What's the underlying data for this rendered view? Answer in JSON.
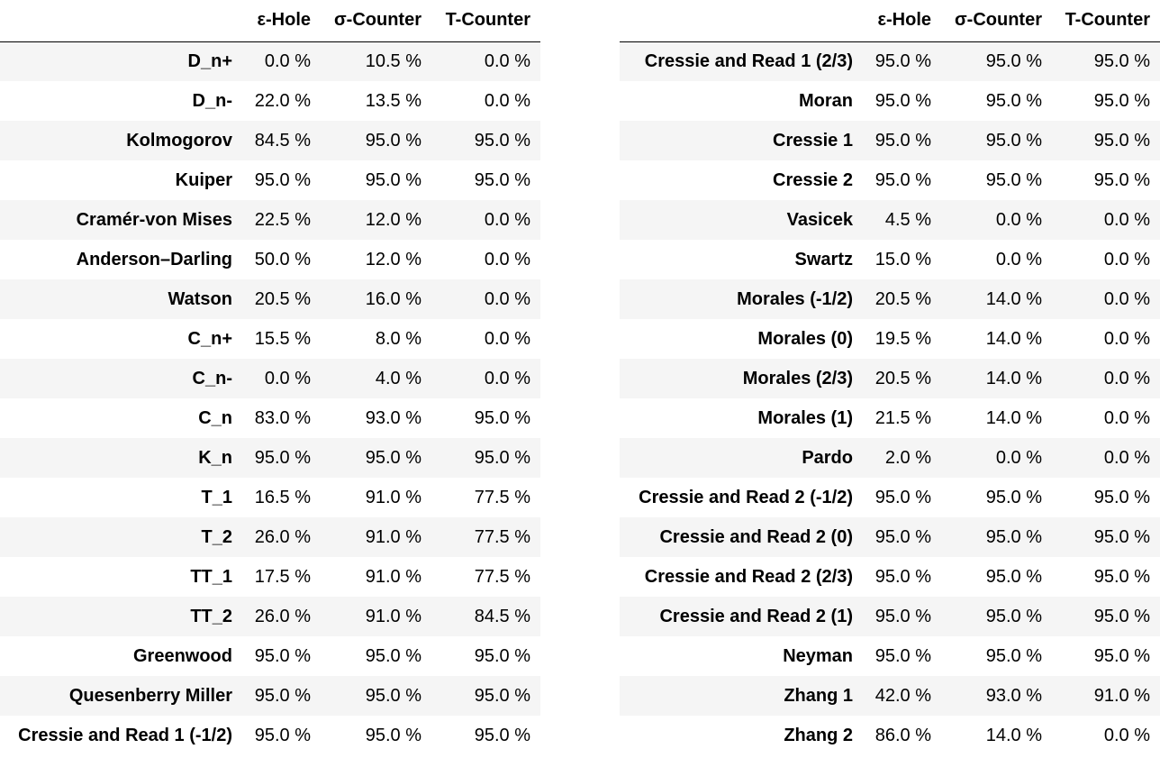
{
  "columns": [
    "",
    "ε-Hole",
    "σ-Counter",
    "T-Counter"
  ],
  "left_table": {
    "rows": [
      {
        "name": "D_n+",
        "values": [
          "0.0 %",
          "10.5 %",
          "0.0 %"
        ]
      },
      {
        "name": "D_n-",
        "values": [
          "22.0 %",
          "13.5 %",
          "0.0 %"
        ]
      },
      {
        "name": "Kolmogorov",
        "values": [
          "84.5 %",
          "95.0 %",
          "95.0 %"
        ]
      },
      {
        "name": "Kuiper",
        "values": [
          "95.0 %",
          "95.0 %",
          "95.0 %"
        ]
      },
      {
        "name": "Cramér-von Mises",
        "values": [
          "22.5 %",
          "12.0 %",
          "0.0 %"
        ]
      },
      {
        "name": "Anderson–Darling",
        "values": [
          "50.0 %",
          "12.0 %",
          "0.0 %"
        ]
      },
      {
        "name": "Watson",
        "values": [
          "20.5 %",
          "16.0 %",
          "0.0 %"
        ]
      },
      {
        "name": "C_n+",
        "values": [
          "15.5 %",
          "8.0 %",
          "0.0 %"
        ]
      },
      {
        "name": "C_n-",
        "values": [
          "0.0 %",
          "4.0 %",
          "0.0 %"
        ]
      },
      {
        "name": "C_n",
        "values": [
          "83.0 %",
          "93.0 %",
          "95.0 %"
        ]
      },
      {
        "name": "K_n",
        "values": [
          "95.0 %",
          "95.0 %",
          "95.0 %"
        ]
      },
      {
        "name": "T_1",
        "values": [
          "16.5 %",
          "91.0 %",
          "77.5 %"
        ]
      },
      {
        "name": "T_2",
        "values": [
          "26.0 %",
          "91.0 %",
          "77.5 %"
        ]
      },
      {
        "name": "TT_1",
        "values": [
          "17.5 %",
          "91.0 %",
          "77.5 %"
        ]
      },
      {
        "name": "TT_2",
        "values": [
          "26.0 %",
          "91.0 %",
          "84.5 %"
        ]
      },
      {
        "name": "Greenwood",
        "values": [
          "95.0 %",
          "95.0 %",
          "95.0 %"
        ]
      },
      {
        "name": "Quesenberry Miller",
        "values": [
          "95.0 %",
          "95.0 %",
          "95.0 %"
        ]
      },
      {
        "name": "Cressie and Read 1 (-1/2)",
        "values": [
          "95.0 %",
          "95.0 %",
          "95.0 %"
        ]
      }
    ]
  },
  "right_table": {
    "rows": [
      {
        "name": "Cressie and Read 1 (2/3)",
        "values": [
          "95.0 %",
          "95.0 %",
          "95.0 %"
        ]
      },
      {
        "name": "Moran",
        "values": [
          "95.0 %",
          "95.0 %",
          "95.0 %"
        ]
      },
      {
        "name": "Cressie 1",
        "values": [
          "95.0 %",
          "95.0 %",
          "95.0 %"
        ]
      },
      {
        "name": "Cressie 2",
        "values": [
          "95.0 %",
          "95.0 %",
          "95.0 %"
        ]
      },
      {
        "name": "Vasicek",
        "values": [
          "4.5 %",
          "0.0 %",
          "0.0 %"
        ]
      },
      {
        "name": "Swartz",
        "values": [
          "15.0 %",
          "0.0 %",
          "0.0 %"
        ]
      },
      {
        "name": "Morales (-1/2)",
        "values": [
          "20.5 %",
          "14.0 %",
          "0.0 %"
        ]
      },
      {
        "name": "Morales (0)",
        "values": [
          "19.5 %",
          "14.0 %",
          "0.0 %"
        ]
      },
      {
        "name": "Morales (2/3)",
        "values": [
          "20.5 %",
          "14.0 %",
          "0.0 %"
        ]
      },
      {
        "name": "Morales (1)",
        "values": [
          "21.5 %",
          "14.0 %",
          "0.0 %"
        ]
      },
      {
        "name": "Pardo",
        "values": [
          "2.0 %",
          "0.0 %",
          "0.0 %"
        ]
      },
      {
        "name": "Cressie and Read 2 (-1/2)",
        "values": [
          "95.0 %",
          "95.0 %",
          "95.0 %"
        ]
      },
      {
        "name": "Cressie and Read 2 (0)",
        "values": [
          "95.0 %",
          "95.0 %",
          "95.0 %"
        ]
      },
      {
        "name": "Cressie and Read 2 (2/3)",
        "values": [
          "95.0 %",
          "95.0 %",
          "95.0 %"
        ]
      },
      {
        "name": "Cressie and Read 2 (1)",
        "values": [
          "95.0 %",
          "95.0 %",
          "95.0 %"
        ]
      },
      {
        "name": "Neyman",
        "values": [
          "95.0 %",
          "95.0 %",
          "95.0 %"
        ]
      },
      {
        "name": "Zhang 1",
        "values": [
          "42.0 %",
          "93.0 %",
          "91.0 %"
        ]
      },
      {
        "name": "Zhang 2",
        "values": [
          "86.0 %",
          "14.0 %",
          "0.0 %"
        ]
      }
    ]
  }
}
